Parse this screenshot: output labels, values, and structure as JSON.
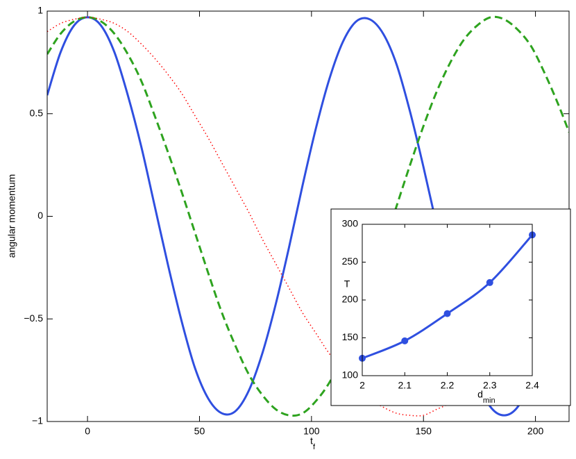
{
  "chart_data": [
    {
      "type": "line",
      "x_label": {
        "text": "t",
        "subscript": "f"
      },
      "y_label": "angular momentum",
      "xlim": [
        -18,
        215
      ],
      "ylim": [
        -1,
        1
      ],
      "xticks": [
        0,
        50,
        100,
        150,
        200
      ],
      "yticks": [
        {
          "value": -1,
          "label": "−1"
        },
        {
          "value": -0.5,
          "label": "−0.5"
        },
        0,
        0.5,
        1
      ],
      "x": [
        -18,
        -12,
        -6,
        0,
        6,
        12,
        18,
        24,
        30,
        36,
        42,
        48,
        54,
        60,
        66,
        72,
        78,
        84,
        90,
        96,
        102,
        108,
        114,
        120,
        126,
        132,
        138,
        144,
        150,
        156,
        162,
        168,
        174,
        180,
        186,
        192,
        198,
        204,
        210,
        215
      ],
      "series": [
        {
          "color": "#2f4fe0",
          "style": "solid",
          "values": [
            0.59,
            0.8,
            0.93,
            0.97,
            0.93,
            0.8,
            0.59,
            0.34,
            0.05,
            -0.24,
            -0.51,
            -0.74,
            -0.89,
            -0.96,
            -0.95,
            -0.85,
            -0.67,
            -0.43,
            -0.15,
            0.15,
            0.43,
            0.67,
            0.85,
            0.95,
            0.96,
            0.89,
            0.74,
            0.51,
            0.24,
            -0.05,
            -0.34,
            -0.59,
            -0.8,
            -0.93,
            -0.97,
            -0.93,
            -0.8,
            -0.59,
            -0.34,
            -0.1
          ]
        },
        {
          "color": "#2ea31f",
          "style": "dashed",
          "values": [
            0.79,
            0.89,
            0.95,
            0.97,
            0.95,
            0.89,
            0.79,
            0.66,
            0.49,
            0.31,
            0.12,
            -0.08,
            -0.28,
            -0.47,
            -0.63,
            -0.77,
            -0.87,
            -0.94,
            -0.97,
            -0.96,
            -0.9,
            -0.81,
            -0.68,
            -0.52,
            -0.34,
            -0.15,
            0.05,
            0.25,
            0.44,
            0.61,
            0.75,
            0.86,
            0.93,
            0.97,
            0.96,
            0.91,
            0.83,
            0.7,
            0.55,
            0.41
          ]
        },
        {
          "color": "#ff0000",
          "style": "dotted",
          "values": [
            0.9,
            0.94,
            0.96,
            0.97,
            0.96,
            0.94,
            0.9,
            0.84,
            0.77,
            0.69,
            0.6,
            0.49,
            0.38,
            0.26,
            0.14,
            0.02,
            -0.11,
            -0.23,
            -0.35,
            -0.47,
            -0.57,
            -0.67,
            -0.75,
            -0.83,
            -0.89,
            -0.93,
            -0.96,
            -0.97,
            -0.97,
            -0.94,
            -0.91,
            -0.86,
            -0.79,
            -0.71,
            -0.62,
            -0.52,
            -0.41,
            -0.29,
            -0.17,
            -0.07
          ]
        }
      ]
    },
    {
      "type": "line",
      "x_label": {
        "text": "d",
        "subscript": "min"
      },
      "y_label": "T",
      "xlim": [
        2,
        2.4
      ],
      "ylim": [
        100,
        300
      ],
      "xticks": [
        2,
        2.1,
        2.2,
        2.3,
        2.4
      ],
      "yticks": [
        100,
        150,
        200,
        250,
        300
      ],
      "x": [
        2,
        2.1,
        2.2,
        2.3,
        2.4
      ],
      "markers": true,
      "series": [
        {
          "color": "#2f4fe0",
          "style": "solid",
          "values": [
            123,
            146,
            182,
            223,
            286
          ]
        }
      ]
    }
  ]
}
